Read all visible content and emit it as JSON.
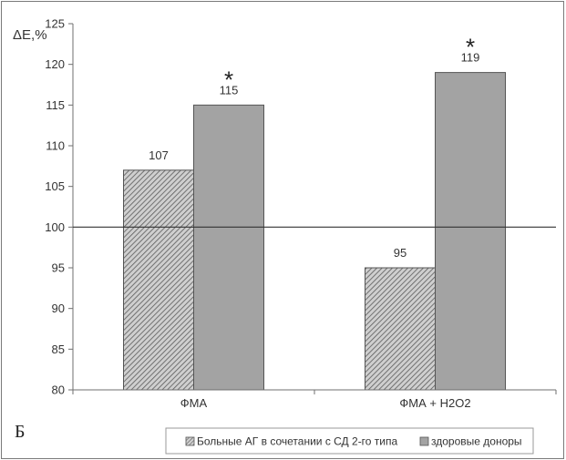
{
  "panel_letter": "Б",
  "chart_data": {
    "type": "bar",
    "ylabel": "ΔE,%",
    "ylim": [
      80,
      125
    ],
    "yticks": [
      80,
      85,
      90,
      95,
      100,
      105,
      110,
      115,
      120,
      125
    ],
    "reference_line": 100,
    "grid": false,
    "legend_position": "bottom-right",
    "categories": [
      "ФМА",
      "ФМА + H2O2"
    ],
    "series": [
      {
        "name": "Больные АГ в сочетании с СД 2-го типа",
        "values": [
          107,
          95
        ],
        "data_labels": [
          "107",
          "95"
        ],
        "fill": "hatched",
        "color": "#9a9a9a"
      },
      {
        "name": "здоровые доноры",
        "values": [
          115,
          119
        ],
        "data_labels": [
          "115",
          "119"
        ],
        "fill": "solid",
        "color": "#a3a3a3"
      }
    ],
    "annotations": [
      {
        "text": "*",
        "category": 0,
        "series": 1
      },
      {
        "text": "*",
        "category": 1,
        "series": 1
      }
    ]
  }
}
